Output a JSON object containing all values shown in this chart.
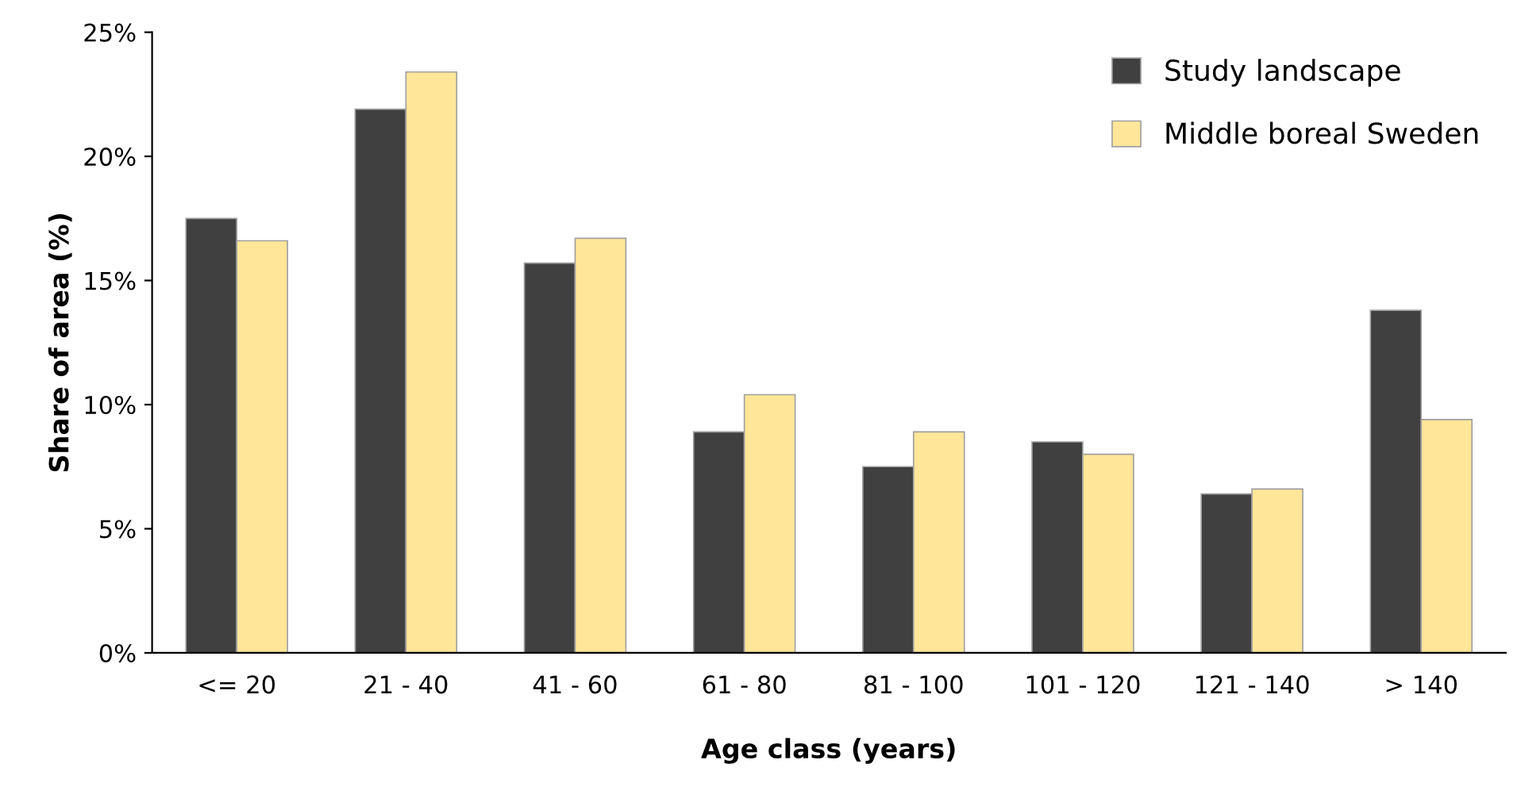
{
  "chart_data": {
    "type": "bar",
    "xlabel": "Age class (years)",
    "ylabel": "Share of area (%)",
    "categories": [
      "<= 20",
      "21 - 40",
      "41 - 60",
      "61 - 80",
      "81 - 100",
      "101 - 120",
      "121 - 140",
      "> 140"
    ],
    "series": [
      {
        "name": "Study landscape",
        "color": "#404040",
        "values": [
          17.5,
          21.9,
          15.7,
          8.9,
          7.5,
          8.5,
          6.4,
          13.8
        ]
      },
      {
        "name": "Middle boreal Sweden",
        "color": "#ffe699",
        "values": [
          16.6,
          23.4,
          16.7,
          10.4,
          8.9,
          8.0,
          6.6,
          9.4
        ]
      }
    ],
    "ylim": [
      0,
      25
    ],
    "yticks": [
      {
        "value": 0,
        "label": "0%"
      },
      {
        "value": 5,
        "label": "5%"
      },
      {
        "value": 10,
        "label": "10%"
      },
      {
        "value": 15,
        "label": "15%"
      },
      {
        "value": 20,
        "label": "20%"
      },
      {
        "value": 25,
        "label": "25%"
      }
    ],
    "grid": false,
    "legend": "top right"
  }
}
